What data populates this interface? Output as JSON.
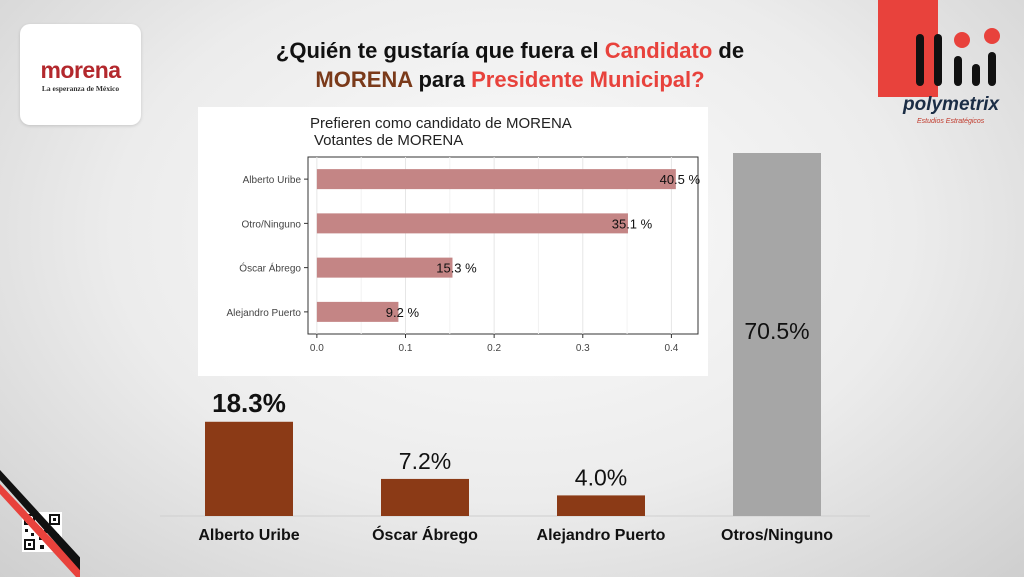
{
  "logo": {
    "word": "morena",
    "tagline": "La esperanza de México"
  },
  "title": {
    "part1": "¿Quién te gustaría que fuera el ",
    "part2": "Candidato",
    "part3": " de",
    "part4": "MORENA",
    "part5": " para ",
    "part6": "Presidente Municipal?"
  },
  "branding": {
    "name": "polymetrix",
    "tagline": "Estudios Estratégicos"
  },
  "colors": {
    "main_bar": "#8b3a16",
    "main_bar_gray": "#a6a6a6",
    "inset_bar": "#c48585",
    "accent_red": "#e8423c"
  },
  "chart_data": [
    {
      "type": "bar",
      "orientation": "vertical",
      "categories": [
        "Alberto Uribe",
        "Óscar Ábrego",
        "Alejandro Puerto",
        "Otros/Ninguno"
      ],
      "values": [
        18.3,
        7.2,
        4.0,
        70.5
      ],
      "data_labels": [
        "18.3%",
        "7.2%",
        "4.0%",
        "70.5%"
      ],
      "bar_colors": [
        "#8b3a16",
        "#8b3a16",
        "#8b3a16",
        "#a6a6a6"
      ],
      "ylim": [
        0,
        70.5
      ],
      "grid": false,
      "legend": "none"
    },
    {
      "type": "bar",
      "orientation": "horizontal",
      "title": "Prefieren como candidato de MORENA",
      "subtitle": "Votantes de MORENA",
      "categories": [
        "Alberto Uribe",
        "Otro/Ninguno",
        "Óscar Ábrego",
        "Alejandro Puerto"
      ],
      "values": [
        0.405,
        0.351,
        0.153,
        0.092
      ],
      "data_labels": [
        "40.5 %",
        "35.1 %",
        "15.3 %",
        "9.2 %"
      ],
      "xlim": [
        -0.01,
        0.43
      ],
      "xticks": [
        0.0,
        0.1,
        0.2,
        0.3,
        0.4
      ],
      "xtick_labels": [
        "0.0",
        "0.1",
        "0.2",
        "0.3",
        "0.4"
      ],
      "grid": true,
      "legend": "none"
    }
  ]
}
